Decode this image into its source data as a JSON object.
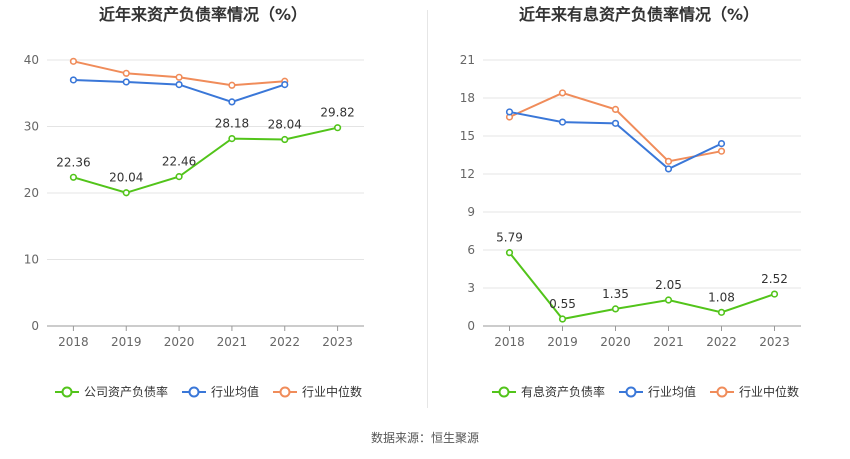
{
  "footer": {
    "source": "数据来源：恒生聚源"
  },
  "colors": {
    "series1": "#52c41a",
    "series2": "#3a77d8",
    "series3": "#f08c5a"
  },
  "chart_data": [
    {
      "type": "line",
      "title": "近年来资产负债率情况（%）",
      "x": [
        "2018",
        "2019",
        "2020",
        "2021",
        "2022",
        "2023"
      ],
      "ylim": [
        0,
        40
      ],
      "yticks": [
        0,
        10,
        20,
        30,
        40
      ],
      "grid": true,
      "legend": "bottom",
      "series": [
        {
          "name": "公司资产负债率",
          "values": [
            22.36,
            20.04,
            22.46,
            28.18,
            28.04,
            29.82
          ],
          "labels": [
            "22.36",
            "20.04",
            "22.46",
            "28.18",
            "28.04",
            "29.82"
          ],
          "color": "#52c41a"
        },
        {
          "name": "行业均值",
          "values": [
            37.0,
            36.7,
            36.3,
            33.7,
            36.3,
            null
          ],
          "color": "#3a77d8"
        },
        {
          "name": "行业中位数",
          "values": [
            39.8,
            38.0,
            37.4,
            36.2,
            36.8,
            null
          ],
          "color": "#f08c5a"
        }
      ]
    },
    {
      "type": "line",
      "title": "近年来有息资产负债率情况（%）",
      "x": [
        "2018",
        "2019",
        "2020",
        "2021",
        "2022",
        "2023"
      ],
      "ylim": [
        0,
        21
      ],
      "yticks": [
        0,
        3,
        6,
        9,
        12,
        15,
        18,
        21
      ],
      "grid": true,
      "legend": "bottom",
      "series": [
        {
          "name": "有息资产负债率",
          "values": [
            5.79,
            0.55,
            1.35,
            2.05,
            1.08,
            2.52
          ],
          "labels": [
            "5.79",
            "0.55",
            "1.35",
            "2.05",
            "1.08",
            "2.52"
          ],
          "color": "#52c41a"
        },
        {
          "name": "行业均值",
          "values": [
            16.9,
            16.1,
            16.0,
            12.4,
            14.4,
            null
          ],
          "color": "#3a77d8"
        },
        {
          "name": "行业中位数",
          "values": [
            16.5,
            18.4,
            17.1,
            13.0,
            13.8,
            null
          ],
          "color": "#f08c5a"
        }
      ]
    }
  ]
}
